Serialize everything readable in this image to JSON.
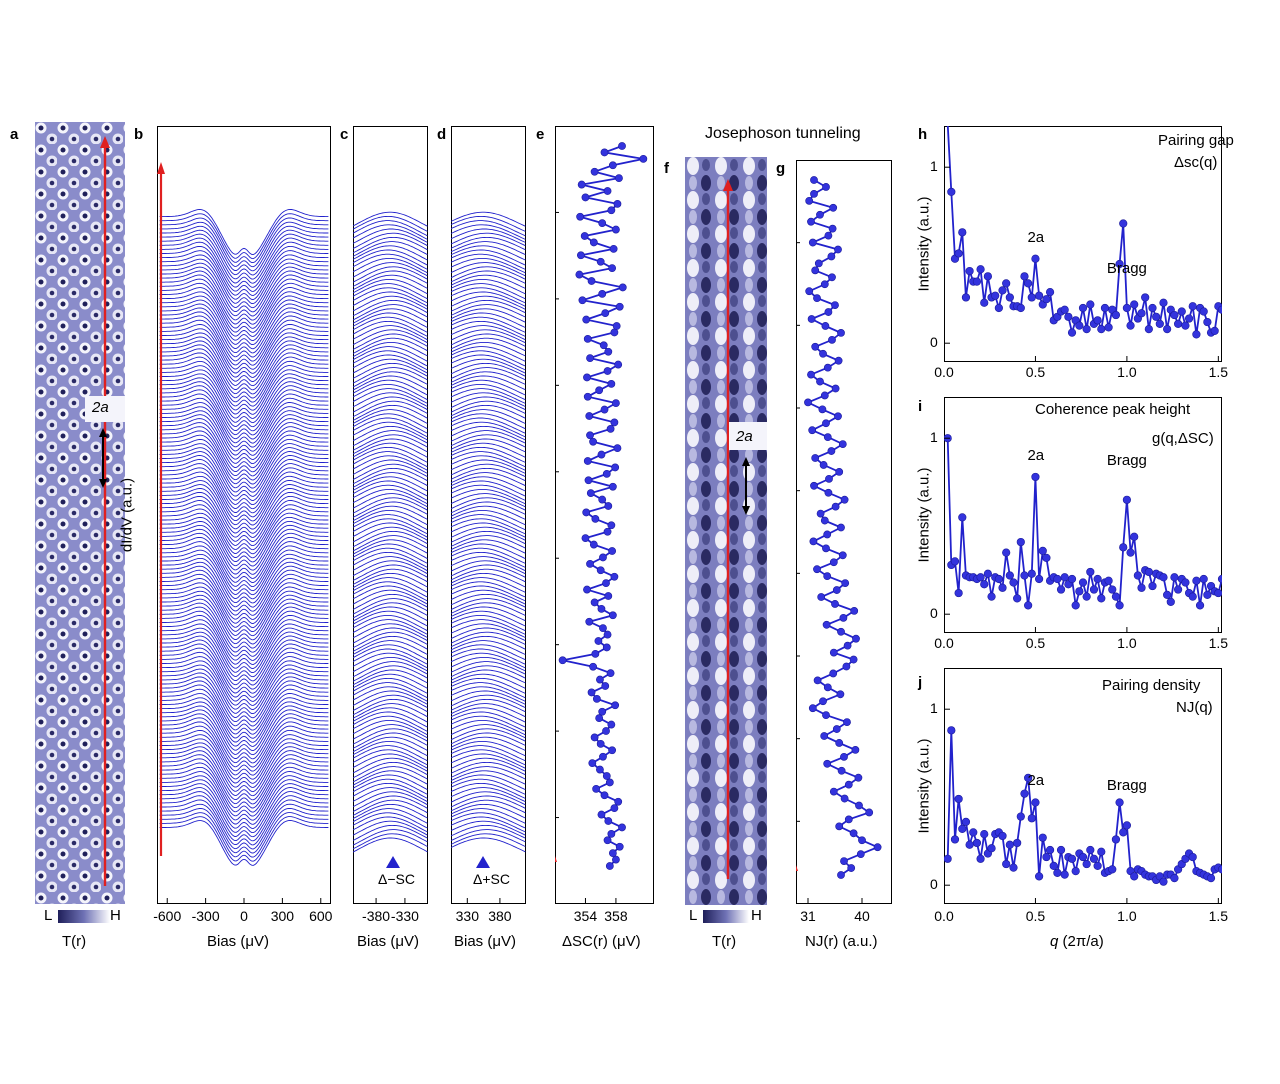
{
  "panel_letters": {
    "a": "a",
    "b": "b",
    "c": "c",
    "d": "d",
    "e": "e",
    "f": "f",
    "g": "g",
    "h": "h",
    "i": "i",
    "j": "j"
  },
  "top_title": "Josephoson tunneling",
  "image_a": {
    "marker": "2a",
    "cbar_low": "L",
    "cbar_high": "H",
    "xlabel": "T(r)"
  },
  "image_f": {
    "marker": "2a",
    "cbar_low": "L",
    "cbar_high": "H",
    "xlabel": "T(r)"
  },
  "colors": {
    "curve": "#2222cc",
    "marker": "#3333dd",
    "arrow": "#e02020",
    "map_dark": "#1f1f5a",
    "map_mid": "#7a7cc0"
  },
  "chart_data": [
    {
      "id": "b",
      "type": "line",
      "ylabel": "dI/dV (a.u.)",
      "xlabel": "Bias (μV)",
      "xticks": [
        -600,
        -300,
        0,
        300,
        600
      ],
      "xlim": [
        -680,
        680
      ],
      "n_curves": 150,
      "series_description_values": {
        "peak_minus_uV": -300,
        "peak_plus_uV": 320
      }
    },
    {
      "id": "c",
      "type": "line",
      "xlabel": "Bias (μV)",
      "xticks": [
        -380,
        -330
      ],
      "xlim": [
        -420,
        -290
      ],
      "marker_label": "Δ−SC"
    },
    {
      "id": "d",
      "type": "line",
      "xlabel": "Bias (μV)",
      "xticks": [
        330,
        380
      ],
      "xlim": [
        305,
        420
      ],
      "marker_label": "Δ+SC"
    },
    {
      "id": "e",
      "type": "scatter",
      "xlabel": "ΔSC(r) (μV)",
      "xticks": [
        354,
        358
      ],
      "xlim": [
        350,
        363
      ],
      "values": [
        357.2,
        358.0,
        357.6,
        358.5,
        356.9,
        357.4,
        358.8,
        357.0,
        356.1,
        357.8,
        358.3,
        356.5,
        355.4,
        357.2,
        356.8,
        355.9,
        354.9,
        356.3,
        357.5,
        356.0,
        355.2,
        356.7,
        357.4,
        355.8,
        356.2,
        357.9,
        355.5,
        354.8,
        356.6,
        355.9,
        357.3,
        355.0,
        351.0,
        355.3,
        356.8,
        355.7,
        356.9,
        356.3,
        354.5,
        357.6,
        356.1,
        355.2,
        357.0,
        354.2,
        356.7,
        357.8,
        356.0,
        354.6,
        356.3,
        357.5,
        355.1,
        354.0,
        356.9,
        357.4,
        355.3,
        354.1,
        357.0,
        356.2,
        354.7,
        357.6,
        354.4,
        356.8,
        357.9,
        354.3,
        356.1,
        358.2,
        355.0,
        354.6,
        357.3,
        357.8,
        354.5,
        356.5,
        358.0,
        354.3,
        355.8,
        357.4,
        354.2,
        356.9,
        358.3,
        354.6,
        357.0,
        356.4,
        354.3,
        357.8,
        358.1,
        354.1,
        356.6,
        358.5,
        353.6,
        356.2,
        358.9,
        354.8,
        353.2,
        357.5,
        356.0,
        353.4,
        357.7,
        355.1,
        353.9,
        358.0,
        356.2,
        353.3,
        357.4,
        358.2,
        354.0,
        356.9,
        353.5,
        358.4,
        355.2,
        357.6,
        361.6,
        356.5,
        358.8
      ]
    },
    {
      "id": "g",
      "type": "scatter",
      "xlabel": "NJ(r) (a.u.)",
      "xticks": [
        31,
        40
      ],
      "xlim": [
        29,
        45
      ],
      "values": [
        36.5,
        38.2,
        37.0,
        39.8,
        42.6,
        40.0,
        38.6,
        36.2,
        37.8,
        41.2,
        39.5,
        37.1,
        35.3,
        37.8,
        39.4,
        36.6,
        34.2,
        37.0,
        38.9,
        36.2,
        33.7,
        35.8,
        37.5,
        34.0,
        31.8,
        33.5,
        36.4,
        34.3,
        32.6,
        35.2,
        37.4,
        38.6,
        35.3,
        37.6,
        39.0,
        36.5,
        34.1,
        36.9,
        38.7,
        35.5,
        33.2,
        35.8,
        37.2,
        34.2,
        32.5,
        35.3,
        36.8,
        34.0,
        31.9,
        34.2,
        36.5,
        33.8,
        33.1,
        35.6,
        37.1,
        34.4,
        32.0,
        34.5,
        36.2,
        33.6,
        32.2,
        34.9,
        36.8,
        34.3,
        31.7,
        34.0,
        36.0,
        33.4,
        31.0,
        33.8,
        35.6,
        33.0,
        31.5,
        34.3,
        36.1,
        33.5,
        32.2,
        35.0,
        36.5,
        33.9,
        31.6,
        34.4,
        35.5,
        32.5,
        31.2,
        33.8,
        35.0,
        32.2,
        32.8,
        34.9,
        36.0,
        31.8,
        34.4,
        35.1,
        31.5,
        33.0,
        35.2,
        31.2,
        32.0,
        34.0,
        32.0
      ]
    },
    {
      "id": "h",
      "type": "line",
      "title": "Pairing gap",
      "subtitle": "Δsc(q)",
      "ylabel": "Intensity (a.u.)",
      "xticks": [
        0.0,
        0.5,
        1.0,
        1.5
      ],
      "yticks": [
        0,
        1
      ],
      "xlim": [
        0,
        1.52
      ],
      "ylim": [
        -0.05,
        1.2
      ],
      "annotations": [
        {
          "text": "2a",
          "x": 0.5
        },
        {
          "text": "Bragg",
          "x": 1.0
        }
      ],
      "x": [
        0.02,
        0.04,
        0.06,
        0.08,
        0.1,
        0.12,
        0.14,
        0.16,
        0.18,
        0.2,
        0.22,
        0.24,
        0.26,
        0.28,
        0.3,
        0.32,
        0.34,
        0.36,
        0.38,
        0.4,
        0.42,
        0.44,
        0.46,
        0.48,
        0.5,
        0.52,
        0.54,
        0.56,
        0.58,
        0.6,
        0.62,
        0.64,
        0.66,
        0.68,
        0.7,
        0.72,
        0.74,
        0.76,
        0.78,
        0.8,
        0.82,
        0.84,
        0.86,
        0.88,
        0.9,
        0.92,
        0.94,
        0.96,
        0.98,
        1.0,
        1.02,
        1.04,
        1.06,
        1.08,
        1.1,
        1.12,
        1.14,
        1.16,
        1.18,
        1.2,
        1.22,
        1.24,
        1.26,
        1.28,
        1.3,
        1.32,
        1.34,
        1.36,
        1.38,
        1.4,
        1.42,
        1.44,
        1.46,
        1.48,
        1.5,
        1.52
      ],
      "y": [
        1.25,
        0.86,
        0.48,
        0.51,
        0.63,
        0.26,
        0.41,
        0.35,
        0.35,
        0.42,
        0.23,
        0.38,
        0.26,
        0.27,
        0.2,
        0.3,
        0.34,
        0.26,
        0.21,
        0.21,
        0.2,
        0.38,
        0.34,
        0.26,
        0.48,
        0.27,
        0.22,
        0.25,
        0.29,
        0.13,
        0.15,
        0.18,
        0.19,
        0.15,
        0.06,
        0.13,
        0.1,
        0.2,
        0.08,
        0.22,
        0.11,
        0.13,
        0.08,
        0.2,
        0.09,
        0.19,
        0.16,
        0.45,
        0.68,
        0.2,
        0.1,
        0.22,
        0.14,
        0.17,
        0.26,
        0.08,
        0.2,
        0.15,
        0.11,
        0.23,
        0.08,
        0.19,
        0.16,
        0.11,
        0.18,
        0.1,
        0.14,
        0.21,
        0.05,
        0.2,
        0.18,
        0.12,
        0.06,
        0.07,
        0.21,
        0.19
      ]
    },
    {
      "id": "i",
      "type": "line",
      "title": "Coherence peak height",
      "subtitle": "g(q,ΔSC)",
      "ylabel": "Intensity (a.u.)",
      "xticks": [
        0.0,
        0.5,
        1.0,
        1.5
      ],
      "yticks": [
        0,
        1
      ],
      "xlim": [
        0,
        1.52
      ],
      "ylim": [
        -0.05,
        1.2
      ],
      "annotations": [
        {
          "text": "2a",
          "x": 0.5
        },
        {
          "text": "Bragg",
          "x": 1.0
        }
      ],
      "x": [
        0.02,
        0.04,
        0.06,
        0.08,
        0.1,
        0.12,
        0.14,
        0.16,
        0.18,
        0.2,
        0.22,
        0.24,
        0.26,
        0.28,
        0.3,
        0.32,
        0.34,
        0.36,
        0.38,
        0.4,
        0.42,
        0.44,
        0.46,
        0.48,
        0.5,
        0.52,
        0.54,
        0.56,
        0.58,
        0.6,
        0.62,
        0.64,
        0.66,
        0.68,
        0.7,
        0.72,
        0.74,
        0.76,
        0.78,
        0.8,
        0.82,
        0.84,
        0.86,
        0.88,
        0.9,
        0.92,
        0.94,
        0.96,
        0.98,
        1.0,
        1.02,
        1.04,
        1.06,
        1.08,
        1.1,
        1.12,
        1.14,
        1.16,
        1.18,
        1.2,
        1.22,
        1.24,
        1.26,
        1.28,
        1.3,
        1.32,
        1.34,
        1.36,
        1.38,
        1.4,
        1.42,
        1.44,
        1.46,
        1.48,
        1.5,
        1.52
      ],
      "y": [
        1.0,
        0.28,
        0.3,
        0.12,
        0.55,
        0.22,
        0.21,
        0.21,
        0.2,
        0.21,
        0.17,
        0.23,
        0.1,
        0.21,
        0.2,
        0.15,
        0.35,
        0.22,
        0.18,
        0.09,
        0.41,
        0.22,
        0.05,
        0.23,
        0.78,
        0.2,
        0.36,
        0.32,
        0.19,
        0.21,
        0.2,
        0.14,
        0.21,
        0.17,
        0.2,
        0.05,
        0.13,
        0.18,
        0.1,
        0.24,
        0.14,
        0.2,
        0.09,
        0.18,
        0.19,
        0.14,
        0.1,
        0.05,
        0.38,
        0.65,
        0.35,
        0.44,
        0.22,
        0.15,
        0.25,
        0.24,
        0.16,
        0.23,
        0.22,
        0.21,
        0.11,
        0.07,
        0.21,
        0.14,
        0.2,
        0.18,
        0.12,
        0.1,
        0.19,
        0.05,
        0.2,
        0.11,
        0.16,
        0.13,
        0.12,
        0.2
      ]
    },
    {
      "id": "j",
      "type": "line",
      "title": "Pairing density",
      "subtitle": "NJ(q)",
      "ylabel": "Intensity (a.u.)",
      "xticks": [
        0.0,
        0.5,
        1.0,
        1.5
      ],
      "yticks": [
        0,
        1
      ],
      "xlim": [
        0,
        1.52
      ],
      "ylim": [
        -0.05,
        1.2
      ],
      "annotations": [
        {
          "text": "2a",
          "x": 0.5
        },
        {
          "text": "Bragg",
          "x": 1.0
        }
      ],
      "x": [
        0.02,
        0.04,
        0.06,
        0.08,
        0.1,
        0.12,
        0.14,
        0.16,
        0.18,
        0.2,
        0.22,
        0.24,
        0.26,
        0.28,
        0.3,
        0.32,
        0.34,
        0.36,
        0.38,
        0.4,
        0.42,
        0.44,
        0.46,
        0.48,
        0.5,
        0.52,
        0.54,
        0.56,
        0.58,
        0.6,
        0.62,
        0.64,
        0.66,
        0.68,
        0.7,
        0.72,
        0.74,
        0.76,
        0.78,
        0.8,
        0.82,
        0.84,
        0.86,
        0.88,
        0.9,
        0.92,
        0.94,
        0.96,
        0.98,
        1.0,
        1.02,
        1.04,
        1.06,
        1.08,
        1.1,
        1.12,
        1.14,
        1.16,
        1.18,
        1.2,
        1.22,
        1.24,
        1.26,
        1.28,
        1.3,
        1.32,
        1.34,
        1.36,
        1.38,
        1.4,
        1.42,
        1.44,
        1.46,
        1.48,
        1.5,
        1.52
      ],
      "y": [
        0.15,
        0.88,
        0.26,
        0.49,
        0.32,
        0.36,
        0.23,
        0.3,
        0.24,
        0.15,
        0.29,
        0.18,
        0.21,
        0.29,
        0.3,
        0.28,
        0.12,
        0.23,
        0.1,
        0.24,
        0.39,
        0.52,
        0.61,
        0.38,
        0.47,
        0.05,
        0.27,
        0.16,
        0.2,
        0.11,
        0.07,
        0.2,
        0.06,
        0.16,
        0.15,
        0.08,
        0.18,
        0.16,
        0.12,
        0.2,
        0.15,
        0.11,
        0.19,
        0.07,
        0.08,
        0.09,
        0.26,
        0.47,
        0.3,
        0.34,
        0.08,
        0.05,
        0.09,
        0.08,
        0.06,
        0.05,
        0.05,
        0.03,
        0.05,
        0.02,
        0.06,
        0.06,
        0.04,
        0.09,
        0.12,
        0.15,
        0.18,
        0.16,
        0.08,
        0.07,
        0.06,
        0.05,
        0.04,
        0.09,
        0.1,
        0.09
      ]
    }
  ]
}
